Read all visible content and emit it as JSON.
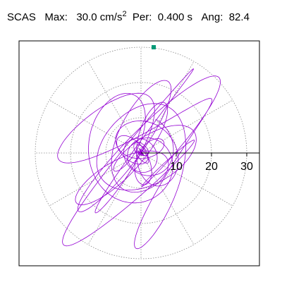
{
  "header": {
    "station": "SCAS",
    "max_label": "Max:",
    "max_value": "30.0",
    "max_unit": "cm/s",
    "max_unit_exp": "2",
    "per_label": "Per:",
    "per_value": "0.400 s",
    "ang_label": "Ang:",
    "ang_value": "82.4"
  },
  "chart_data": {
    "type": "polar-orbit",
    "radial_ticks": [
      10,
      20,
      30
    ],
    "radial_max": 30.0,
    "grid": true,
    "peak_marker": {
      "radius": 30.0
    },
    "colors": {
      "trace": "#9400d3",
      "marker": "#009977",
      "grid": "#888888",
      "axis": "#000000"
    }
  }
}
